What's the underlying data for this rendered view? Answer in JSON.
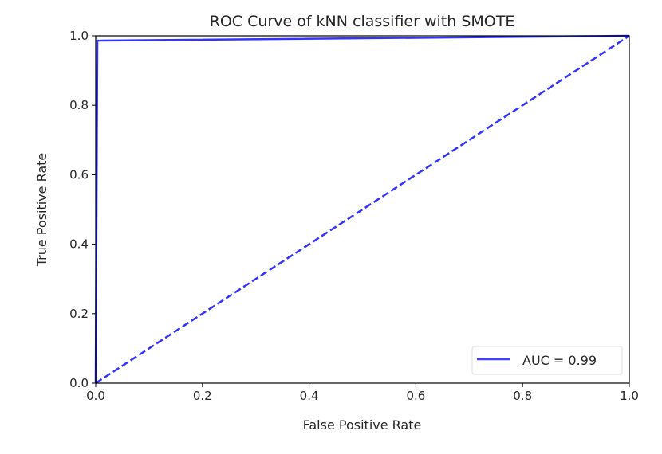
{
  "chart_data": {
    "type": "line",
    "title": "ROC Curve of kNN classifier with SMOTE",
    "xlabel": "False Positive Rate",
    "ylabel": "True Positive Rate",
    "xlim": [
      0,
      1
    ],
    "ylim": [
      0,
      1
    ],
    "xticks": [
      0.0,
      0.2,
      0.4,
      0.6,
      0.8,
      1.0
    ],
    "yticks": [
      0.0,
      0.2,
      0.4,
      0.6,
      0.8,
      1.0
    ],
    "xtick_labels": [
      "0.0",
      "0.2",
      "0.4",
      "0.6",
      "0.8",
      "1.0"
    ],
    "ytick_labels": [
      "0.0",
      "0.2",
      "0.4",
      "0.6",
      "0.8",
      "1.0"
    ],
    "grid": false,
    "legend_position": "lower-right",
    "series": [
      {
        "name": "AUC = 0.99",
        "style": "solid",
        "color": "#0000ff",
        "x": [
          0.0,
          0.003,
          1.0
        ],
        "y": [
          0.0,
          0.986,
          1.0
        ]
      },
      {
        "name": "chance",
        "style": "dashed",
        "color": "#0000ff",
        "x": [
          0.0,
          1.0
        ],
        "y": [
          0.0,
          1.0
        ]
      }
    ],
    "legend": [
      {
        "label": "AUC = 0.99",
        "color": "#0000ff"
      }
    ]
  }
}
